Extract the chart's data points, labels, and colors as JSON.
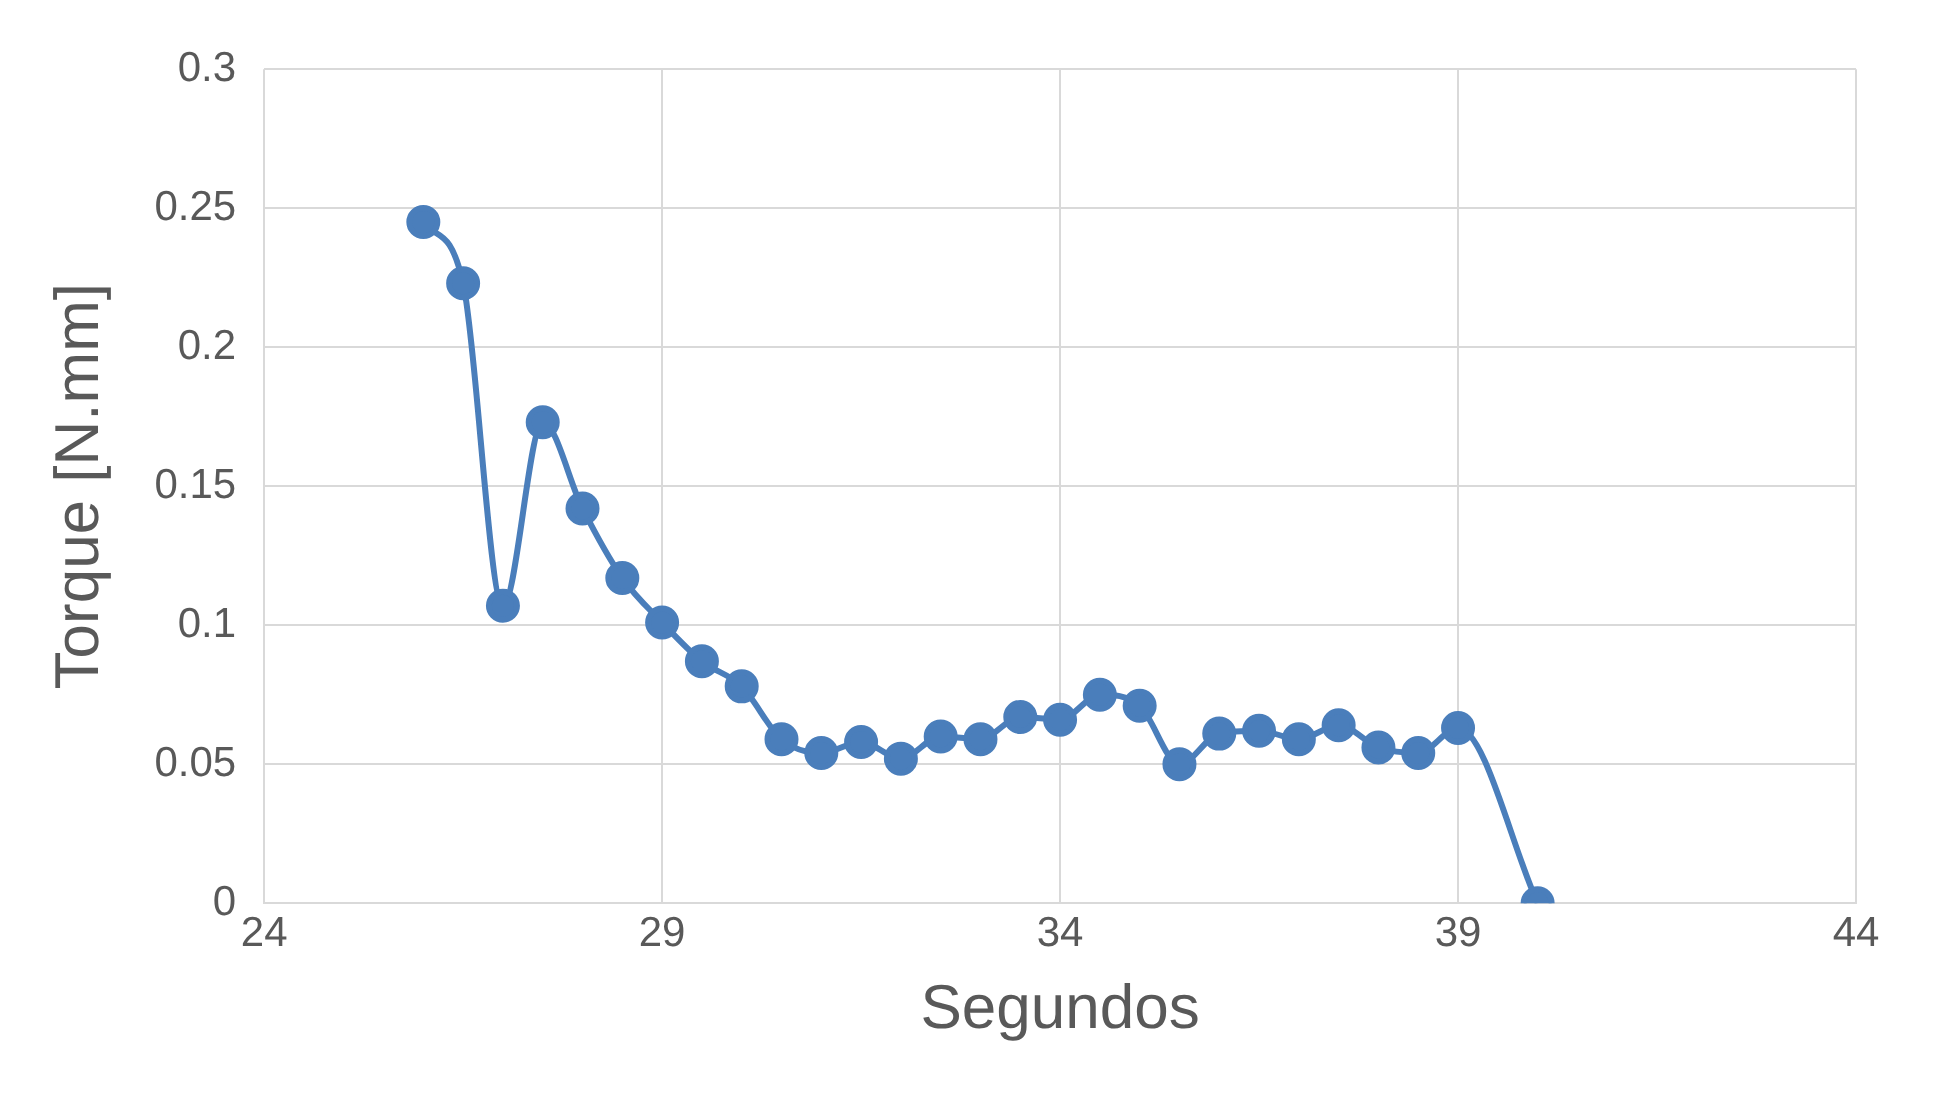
{
  "chart_data": {
    "type": "line",
    "xlabel": "Segundos",
    "ylabel": "Torque [N.mm]",
    "x": [
      26,
      26.5,
      27,
      27.5,
      28,
      28.5,
      29,
      29.5,
      30,
      30.5,
      31,
      31.5,
      32,
      32.5,
      33,
      33.5,
      34,
      34.5,
      35,
      35.5,
      36,
      36.5,
      37,
      37.5,
      38,
      38.5,
      39,
      40
    ],
    "series": [
      {
        "color": "#4a7ebb",
        "values": [
          0.245,
          0.223,
          0.107,
          0.173,
          0.142,
          0.117,
          0.101,
          0.087,
          0.078,
          0.059,
          0.054,
          0.058,
          0.052,
          0.06,
          0.059,
          0.067,
          0.066,
          0.075,
          0.071,
          0.05,
          0.061,
          0.062,
          0.059,
          0.064,
          0.056,
          0.054,
          0.063,
          0
        ]
      }
    ],
    "xlim": [
      24,
      44
    ],
    "xticks": [
      24,
      29,
      34,
      39,
      44
    ],
    "ylim": [
      0,
      0.3
    ],
    "yticks": [
      0,
      0.05,
      0.1,
      0.15,
      0.2,
      0.25,
      0.3
    ],
    "grid": true,
    "legend": false,
    "marker": "circle",
    "line_style": "solid"
  }
}
